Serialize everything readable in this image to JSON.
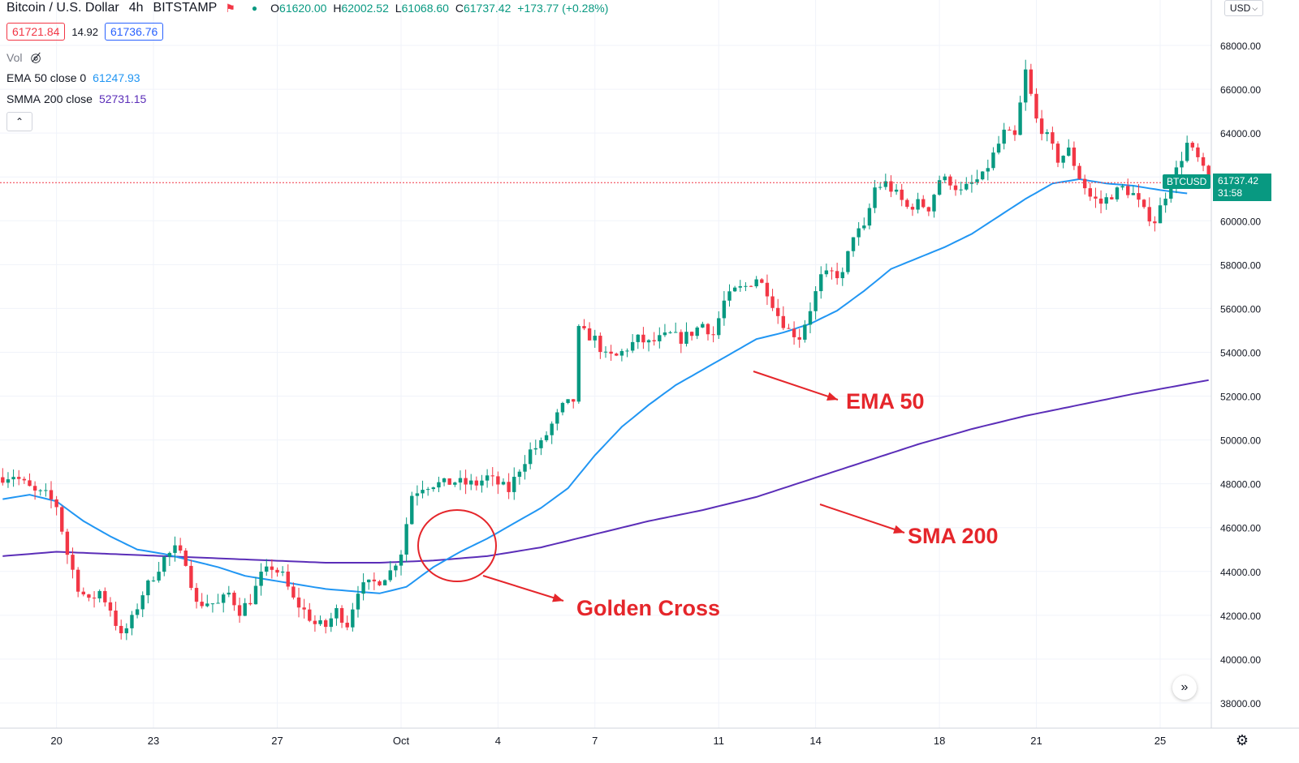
{
  "header": {
    "symbol": "Bitcoin / U.S. Dollar",
    "interval": "4h",
    "exchange": "BITSTAMP",
    "ohlc": {
      "open_label": "O",
      "open": "61620.00",
      "high_label": "H",
      "high": "62002.52",
      "low_label": "L",
      "low": "61068.60",
      "close_label": "C",
      "close": "61737.42",
      "change": "+173.77 (+0.28%)"
    },
    "bid": "61721.84",
    "spread": "14.92",
    "ask": "61736.76"
  },
  "indicators": {
    "vol_label": "Vol",
    "ema_name": "EMA",
    "ema_params": "50 close 0",
    "ema_value": "61247.93",
    "smma_name": "SMMA",
    "smma_params": "200 close",
    "smma_value": "52731.15"
  },
  "price_scale": {
    "currency": "USD"
  },
  "last_price": {
    "symbol_tag": "BTCUSD",
    "price": "61737.42",
    "countdown": "31:58"
  },
  "annotations": {
    "ema": "EMA 50",
    "sma": "SMA 200",
    "golden_cross": "Golden Cross"
  },
  "colors": {
    "up": "#089981",
    "down": "#f23645",
    "ema": "#2196f3",
    "smma": "#5b2eb8",
    "annotation": "#e5262b",
    "grid": "#f0f3fa"
  },
  "chart_data": {
    "type": "candlestick",
    "x_ticks": [
      "20",
      "23",
      "27",
      "Oct",
      "4",
      "7",
      "11",
      "14",
      "18",
      "21",
      "25"
    ],
    "y_ticks": [
      "38000.00",
      "40000.00",
      "42000.00",
      "44000.00",
      "46000.00",
      "48000.00",
      "50000.00",
      "52000.00",
      "54000.00",
      "56000.00",
      "58000.00",
      "60000.00",
      "62000.00",
      "64000.00",
      "66000.00",
      "68000.00"
    ],
    "ylim": [
      37000,
      70000
    ],
    "anchors": [
      [
        0,
        48300
      ],
      [
        2,
        48400
      ],
      [
        4,
        48000
      ],
      [
        6,
        47600
      ],
      [
        8,
        47500
      ],
      [
        10,
        47000
      ],
      [
        12,
        44800
      ],
      [
        14,
        43300
      ],
      [
        16,
        42600
      ],
      [
        18,
        43100
      ],
      [
        20,
        42300
      ],
      [
        22,
        41000
      ],
      [
        24,
        41800
      ],
      [
        26,
        43000
      ],
      [
        28,
        43800
      ],
      [
        30,
        44600
      ],
      [
        32,
        45000
      ],
      [
        34,
        44500
      ],
      [
        36,
        42500
      ],
      [
        38,
        42600
      ],
      [
        40,
        42500
      ],
      [
        42,
        43000
      ],
      [
        44,
        42200
      ],
      [
        46,
        42700
      ],
      [
        48,
        43800
      ],
      [
        50,
        44200
      ],
      [
        52,
        43800
      ],
      [
        54,
        42700
      ],
      [
        56,
        42200
      ],
      [
        58,
        41600
      ],
      [
        60,
        41500
      ],
      [
        62,
        42200
      ],
      [
        64,
        41600
      ],
      [
        66,
        43200
      ],
      [
        68,
        43400
      ],
      [
        70,
        43600
      ],
      [
        72,
        44000
      ],
      [
        74,
        44900
      ],
      [
        76,
        47500
      ],
      [
        78,
        47900
      ],
      [
        80,
        48000
      ],
      [
        82,
        48000
      ],
      [
        84,
        48100
      ],
      [
        86,
        48000
      ],
      [
        88,
        48000
      ],
      [
        90,
        48300
      ],
      [
        92,
        48000
      ],
      [
        94,
        47700
      ],
      [
        96,
        48700
      ],
      [
        98,
        49500
      ],
      [
        100,
        49800
      ],
      [
        102,
        50700
      ],
      [
        104,
        51500
      ],
      [
        106,
        51800
      ],
      [
        107,
        55000
      ],
      [
        110,
        54600
      ],
      [
        112,
        53800
      ],
      [
        114,
        53800
      ],
      [
        116,
        54200
      ],
      [
        118,
        54600
      ],
      [
        120,
        54400
      ],
      [
        122,
        54600
      ],
      [
        124,
        54800
      ],
      [
        126,
        54600
      ],
      [
        128,
        54900
      ],
      [
        130,
        55300
      ],
      [
        132,
        54800
      ],
      [
        134,
        56300
      ],
      [
        136,
        56800
      ],
      [
        138,
        57000
      ],
      [
        140,
        57400
      ],
      [
        142,
        56800
      ],
      [
        144,
        55700
      ],
      [
        146,
        55000
      ],
      [
        148,
        54700
      ],
      [
        150,
        56000
      ],
      [
        152,
        57400
      ],
      [
        154,
        57600
      ],
      [
        156,
        57500
      ],
      [
        158,
        59400
      ],
      [
        160,
        59600
      ],
      [
        162,
        61500
      ],
      [
        164,
        61700
      ],
      [
        166,
        61200
      ],
      [
        168,
        60600
      ],
      [
        170,
        60800
      ],
      [
        172,
        60600
      ],
      [
        174,
        61900
      ],
      [
        176,
        61800
      ],
      [
        178,
        61300
      ],
      [
        180,
        61700
      ],
      [
        182,
        62000
      ],
      [
        184,
        63000
      ],
      [
        186,
        64000
      ],
      [
        188,
        63800
      ],
      [
        190,
        66800
      ],
      [
        192,
        64600
      ],
      [
        194,
        63800
      ],
      [
        196,
        62800
      ],
      [
        198,
        63200
      ],
      [
        200,
        62000
      ],
      [
        202,
        61100
      ],
      [
        204,
        60800
      ],
      [
        206,
        61200
      ],
      [
        208,
        61500
      ],
      [
        210,
        61200
      ],
      [
        212,
        60400
      ],
      [
        214,
        60000
      ],
      [
        216,
        61200
      ],
      [
        218,
        62300
      ],
      [
        220,
        63500
      ],
      [
        222,
        62800
      ],
      [
        224,
        61737
      ]
    ],
    "ema50": [
      [
        0,
        47300
      ],
      [
        5,
        47500
      ],
      [
        10,
        47200
      ],
      [
        15,
        46300
      ],
      [
        20,
        45600
      ],
      [
        25,
        45000
      ],
      [
        30,
        44800
      ],
      [
        35,
        44500
      ],
      [
        40,
        44200
      ],
      [
        45,
        43800
      ],
      [
        50,
        43600
      ],
      [
        55,
        43400
      ],
      [
        60,
        43200
      ],
      [
        65,
        43100
      ],
      [
        70,
        43000
      ],
      [
        75,
        43300
      ],
      [
        80,
        44200
      ],
      [
        85,
        44900
      ],
      [
        90,
        45500
      ],
      [
        95,
        46200
      ],
      [
        100,
        46900
      ],
      [
        105,
        47800
      ],
      [
        110,
        49300
      ],
      [
        115,
        50600
      ],
      [
        120,
        51600
      ],
      [
        125,
        52500
      ],
      [
        130,
        53200
      ],
      [
        135,
        53900
      ],
      [
        140,
        54600
      ],
      [
        145,
        54900
      ],
      [
        150,
        55300
      ],
      [
        155,
        55900
      ],
      [
        160,
        56800
      ],
      [
        165,
        57800
      ],
      [
        170,
        58300
      ],
      [
        175,
        58800
      ],
      [
        180,
        59400
      ],
      [
        185,
        60200
      ],
      [
        190,
        61000
      ],
      [
        195,
        61700
      ],
      [
        200,
        61900
      ],
      [
        205,
        61700
      ],
      [
        210,
        61600
      ],
      [
        215,
        61400
      ],
      [
        220,
        61248
      ]
    ],
    "smma200": [
      [
        0,
        44700
      ],
      [
        10,
        44900
      ],
      [
        20,
        44800
      ],
      [
        30,
        44700
      ],
      [
        40,
        44600
      ],
      [
        50,
        44500
      ],
      [
        60,
        44400
      ],
      [
        70,
        44400
      ],
      [
        80,
        44500
      ],
      [
        90,
        44700
      ],
      [
        100,
        45100
      ],
      [
        110,
        45700
      ],
      [
        120,
        46300
      ],
      [
        130,
        46800
      ],
      [
        140,
        47400
      ],
      [
        150,
        48200
      ],
      [
        160,
        49000
      ],
      [
        170,
        49800
      ],
      [
        180,
        50500
      ],
      [
        190,
        51100
      ],
      [
        200,
        51600
      ],
      [
        210,
        52100
      ],
      [
        224,
        52731
      ]
    ]
  }
}
